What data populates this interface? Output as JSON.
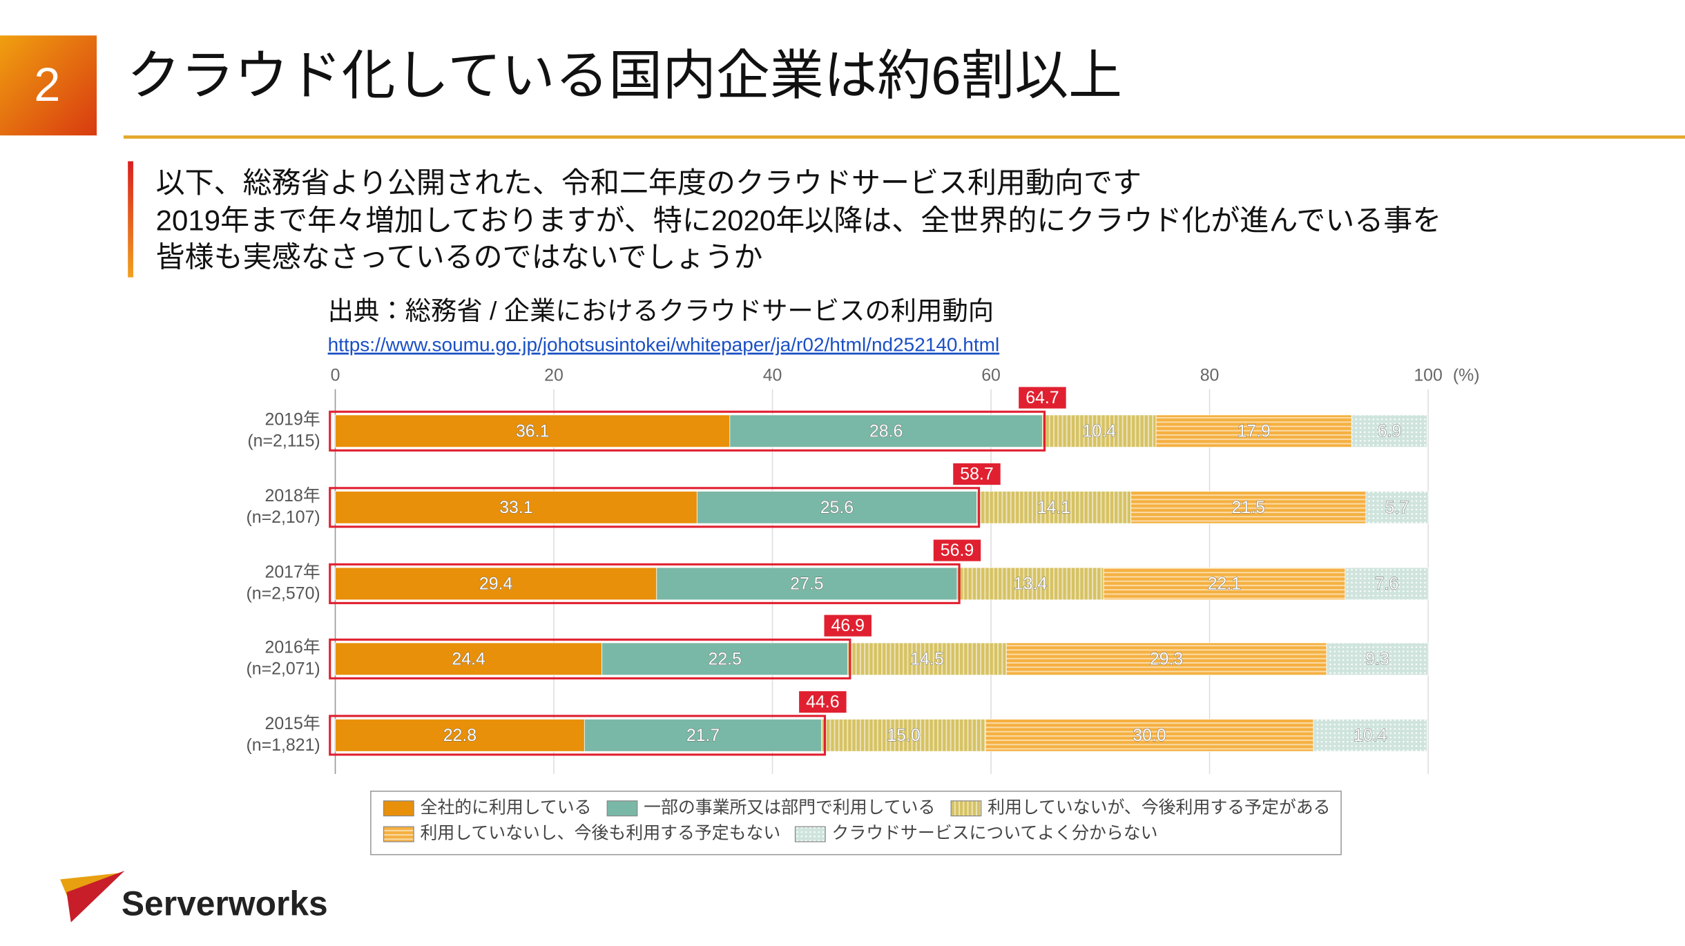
{
  "slide": {
    "number": "2",
    "title": "クラウド化している国内企業は約6割以上",
    "body": [
      "以下、総務省より公開された、令和二年度のクラウドサービス利用動向です",
      "2019年まで年々増加しておりますが、特に2020年以降は、全世界的にクラウド化が進んでいる事を",
      "皆様も実感なさっているのではないでしょうか"
    ],
    "source": "出典：総務省 / 企業におけるクラウドサービスの利用動向",
    "url": "https://www.soumu.go.jp/johotsusintokei/whitepaper/ja/r02/html/nd252140.html",
    "logo": "Serverworks"
  },
  "chart_data": {
    "type": "stacked-bar-horizontal",
    "categories": [
      "2019年",
      "2018年",
      "2017年",
      "2016年",
      "2015年"
    ],
    "sample_sizes": [
      "(n=2,115)",
      "(n=2,107)",
      "(n=2,570)",
      "(n=2,071)",
      "(n=1,821)"
    ],
    "series": [
      {
        "name": "全社的に利用している",
        "color": "#e8900a",
        "pattern": "solid",
        "values": [
          36.1,
          33.1,
          29.4,
          24.4,
          22.8
        ]
      },
      {
        "name": "一部の事業所又は部門で利用している",
        "color": "#79b8a6",
        "pattern": "solid",
        "values": [
          28.6,
          25.6,
          27.5,
          22.5,
          21.7
        ]
      },
      {
        "name": "利用していないが、今後利用する予定がある",
        "color": "#d6c262",
        "pattern": "vertical-stripes",
        "values": [
          10.4,
          14.1,
          13.4,
          14.5,
          15
        ],
        "value_labels": [
          "10.4",
          "14.1",
          "13.4",
          "14.5",
          "15.0"
        ]
      },
      {
        "name": "利用していないし、今後も利用する予定もない",
        "color": "#f5b040",
        "pattern": "horizontal-stripes",
        "values": [
          17.9,
          21.5,
          22.1,
          29.3,
          30
        ],
        "value_labels": [
          "17.9",
          "21.5",
          "22.1",
          "29.3",
          "30.0"
        ]
      },
      {
        "name": "クラウドサービスについてよく分からない",
        "color": "#cfe4dc",
        "pattern": "dots",
        "values": [
          6.9,
          5.7,
          7.6,
          9.3,
          10.4
        ]
      }
    ],
    "highlight_totals": [
      64.7,
      58.7,
      56.9,
      46.9,
      44.6
    ],
    "highlight_color": "#e02030",
    "xlim": [
      0,
      100
    ],
    "xticks": [
      0,
      20,
      40,
      60,
      80,
      100
    ],
    "x_unit": "(%)",
    "grid": true,
    "legend": "bottom"
  }
}
